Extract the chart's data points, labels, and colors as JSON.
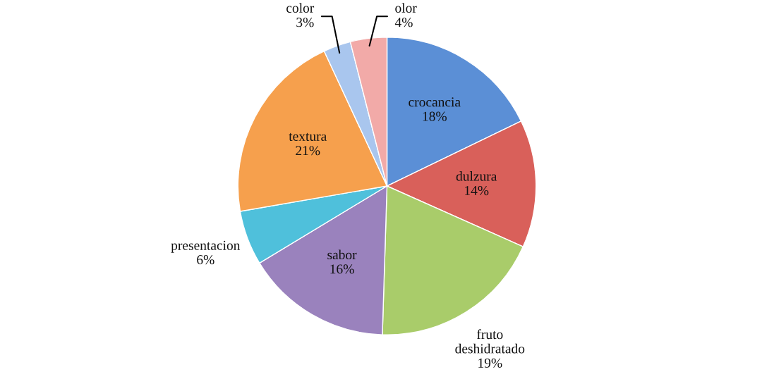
{
  "chart_data": {
    "type": "pie",
    "categories": [
      "crocancia",
      "dulzura",
      "fruto deshidratado",
      "sabor",
      "presentacion",
      "textura",
      "color",
      "olor"
    ],
    "values": [
      18,
      14,
      19,
      16,
      6,
      21,
      3,
      4
    ],
    "colors": [
      "#5b8fd6",
      "#d9605a",
      "#a9cc6a",
      "#9a82bd",
      "#4fc0db",
      "#f6a04d",
      "#a9c6ee",
      "#f2aaa8"
    ],
    "value_labels": [
      "18%",
      "14%",
      "19%",
      "16%",
      "6%",
      "21%",
      "3%",
      "4%"
    ],
    "legend": false
  }
}
